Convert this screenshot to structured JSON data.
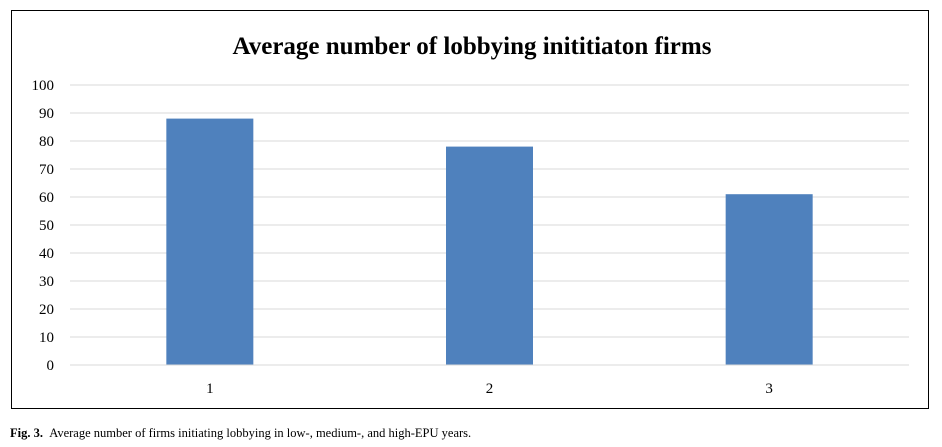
{
  "chart_data": {
    "type": "bar",
    "title": "Average number of lobbying inititiaton firms",
    "categories": [
      "1",
      "2",
      "3"
    ],
    "values": [
      88,
      78,
      61
    ],
    "xlabel": "",
    "ylabel": "",
    "ylim": [
      0,
      100
    ],
    "yticks": [
      "0",
      "10",
      "20",
      "30",
      "40",
      "50",
      "60",
      "70",
      "80",
      "90",
      "100"
    ],
    "grid": true,
    "legend": "none",
    "bar_color": "#4f81bd",
    "grid_color": "#d9d9d9"
  },
  "caption": {
    "label": "Fig. 3.",
    "text": "Average number of firms initiating lobbying in low-, medium-, and high-EPU years."
  }
}
